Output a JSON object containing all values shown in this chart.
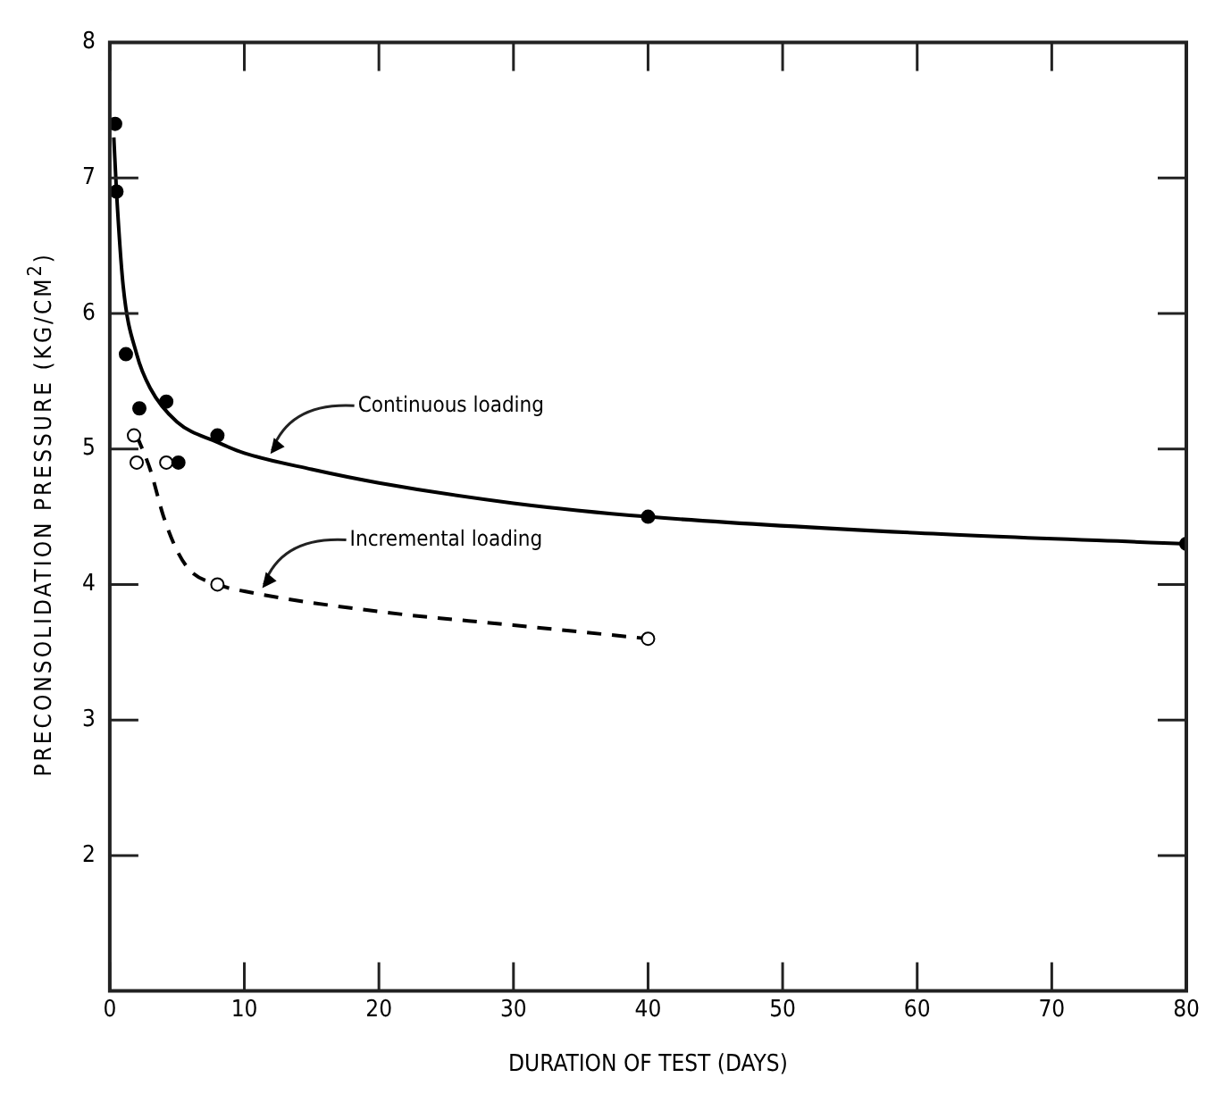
{
  "chart_data": {
    "type": "scatter",
    "xlabel": "DURATION OF TEST (DAYS)",
    "ylabel": "PRECONSOLIDATION PRESSURE (KG/CM$^{2}$)",
    "xlim": [
      0,
      80
    ],
    "xticks": [
      0,
      10,
      20,
      30,
      40,
      50,
      60,
      70,
      80
    ],
    "ylim": [
      1,
      8
    ],
    "yticks": [
      2,
      3,
      4,
      5,
      6,
      7,
      8
    ],
    "grid": false,
    "legend": false,
    "series": [
      {
        "type": "scatter",
        "marker": "circle",
        "color": "#000000",
        "x": [
          0.4,
          0.5,
          1.2,
          2.2,
          4.2,
          5.1,
          8,
          40,
          80
        ],
        "values": [
          7.4,
          6.9,
          5.7,
          5.3,
          5.35,
          4.9,
          5.1,
          4.5,
          4.3
        ]
      },
      {
        "type": "scatter",
        "marker": "circle",
        "color": "#ffffff",
        "x": [
          1.8,
          2,
          4.2,
          8,
          40
        ],
        "values": [
          5.1,
          4.9,
          4.9,
          4.0,
          3.6
        ]
      },
      {
        "type": "line",
        "marker": "none",
        "line_style": "solid",
        "color": "#000000",
        "x": [
          0.3,
          0.5,
          1,
          2,
          3,
          5,
          8,
          10,
          15,
          20,
          30,
          40,
          60,
          80
        ],
        "values": [
          7.3,
          6.9,
          6.2,
          5.7,
          5.45,
          5.2,
          5.05,
          4.97,
          4.85,
          4.75,
          4.6,
          4.5,
          4.38,
          4.3
        ]
      },
      {
        "type": "line",
        "marker": "none",
        "line_style": "dashed",
        "color": "#000000",
        "x": [
          2,
          3,
          4,
          5,
          6,
          8,
          10,
          20,
          30,
          40
        ],
        "values": [
          5.1,
          4.85,
          4.5,
          4.25,
          4.1,
          4.0,
          3.95,
          3.8,
          3.7,
          3.6
        ]
      }
    ],
    "annotations": [
      {
        "text": "Continuous loading",
        "x": 11.8,
        "y": 4.95
      },
      {
        "text": "Incremental loading",
        "x": 11.2,
        "y": 3.96
      }
    ]
  }
}
